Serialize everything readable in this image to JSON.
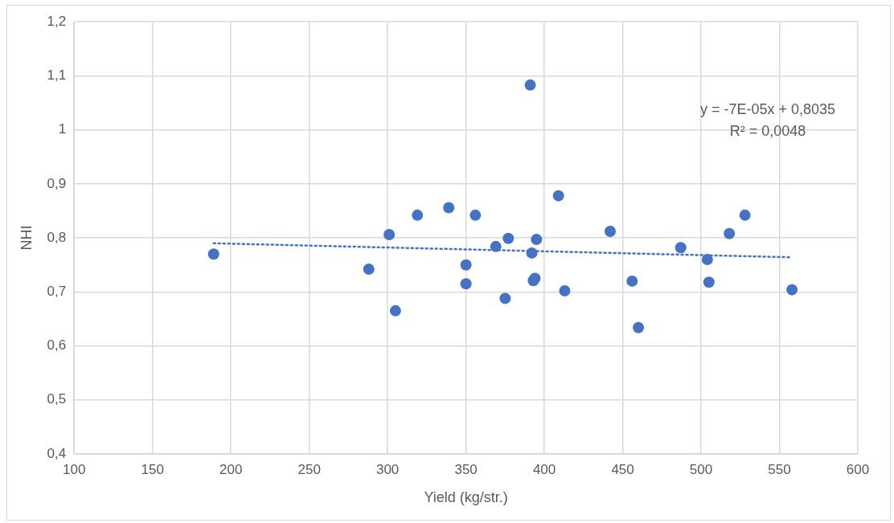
{
  "chart_data": {
    "type": "scatter",
    "xlabel": "Yield (kg/str.)",
    "ylabel": "NHI",
    "xlim": [
      100,
      600
    ],
    "xticks": [
      100,
      150,
      200,
      250,
      300,
      350,
      400,
      450,
      500,
      550,
      600
    ],
    "ylim": [
      0.4,
      1.2
    ],
    "yticks": [
      {
        "value": 0.4,
        "label": "0,4"
      },
      {
        "value": 0.5,
        "label": "0,5"
      },
      {
        "value": 0.6,
        "label": "0,6"
      },
      {
        "value": 0.7,
        "label": "0,7"
      },
      {
        "value": 0.8,
        "label": "0,8"
      },
      {
        "value": 0.9,
        "label": "0,9"
      },
      {
        "value": 1,
        "label": "1"
      },
      {
        "value": 1.1,
        "label": "1,1"
      },
      {
        "value": 1.2,
        "label": "1,2"
      }
    ],
    "grid": true,
    "legend": false,
    "marker": "circle",
    "series": [
      {
        "color": "#4472c4",
        "x": [
          189,
          288,
          301,
          305,
          319,
          339,
          350,
          350,
          356,
          369,
          375,
          377,
          391,
          392,
          393,
          394,
          395,
          409,
          413,
          442,
          456,
          460,
          487,
          504,
          505,
          518,
          528,
          558
        ],
        "values": [
          0.77,
          0.742,
          0.806,
          0.665,
          0.842,
          0.856,
          0.75,
          0.715,
          0.842,
          0.784,
          0.688,
          0.799,
          1.083,
          0.772,
          0.721,
          0.725,
          0.797,
          0.878,
          0.702,
          0.812,
          0.72,
          0.634,
          0.782,
          0.76,
          0.718,
          0.808,
          0.842,
          0.704
        ]
      },
      {
        "type": "line",
        "color": "#4472c4",
        "line_style": "dotted",
        "marker": "none",
        "x": [
          189,
          558
        ],
        "values": [
          0.79,
          0.764
        ]
      }
    ],
    "annotations": [
      "y = -7E-05x + 0,8035",
      "R² = 0,0048"
    ]
  }
}
